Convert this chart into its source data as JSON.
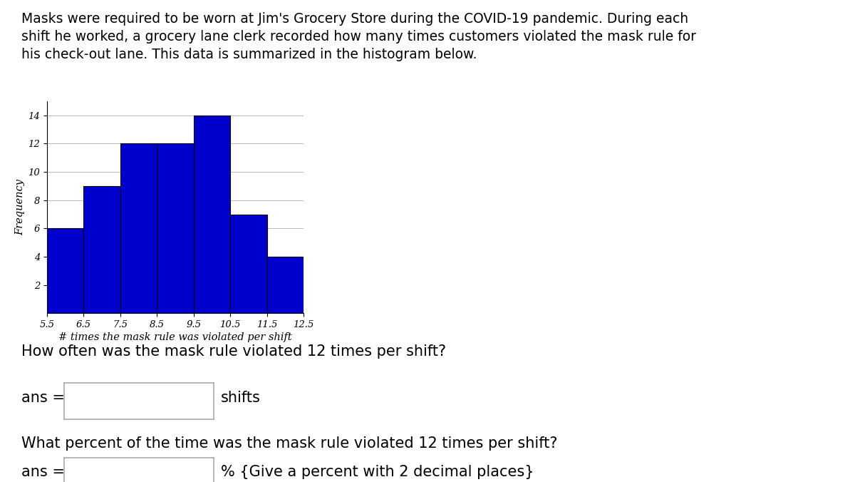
{
  "bar_edges": [
    5.5,
    6.5,
    7.5,
    8.5,
    9.5,
    10.5,
    11.5,
    12.5
  ],
  "frequencies": [
    6,
    9,
    12,
    12,
    14,
    7,
    4
  ],
  "bar_color": "#0000CC",
  "bar_edgecolor": "#000000",
  "xlabel": "# times the mask rule was violated per shift",
  "ylabel": "Frequency",
  "xlim": [
    5.5,
    12.5
  ],
  "ylim": [
    0,
    15
  ],
  "yticks": [
    2,
    4,
    6,
    8,
    10,
    12,
    14
  ],
  "xticks": [
    5.5,
    6.5,
    7.5,
    8.5,
    9.5,
    10.5,
    11.5,
    12.5
  ],
  "title_text": "Masks were required to be worn at Jim's Grocery Store during the COVID-19 pandemic. During each\nshift he worked, a grocery lane clerk recorded how many times customers violated the mask rule for\nhis check-out lane. This data is summarized in the histogram below.",
  "q1_text": "How often was the mask rule violated 12 times per shift?",
  "q1_ans_label": "ans =",
  "q1_ans_suffix": "shifts",
  "q2_text": "What percent of the time was the mask rule violated 12 times per shift?",
  "q2_ans_label": "ans =",
  "q2_ans_suffix": "% {Give a percent with 2 decimal places}",
  "fig_bg": "#ffffff",
  "ax_bg": "#ffffff",
  "grid_color": "#bbbbbb",
  "font_size_title": 13.5,
  "font_size_axis": 10.5,
  "font_size_tick": 9.5,
  "font_size_question": 15,
  "font_size_ans": 15,
  "box_color": "#d0d0d0"
}
